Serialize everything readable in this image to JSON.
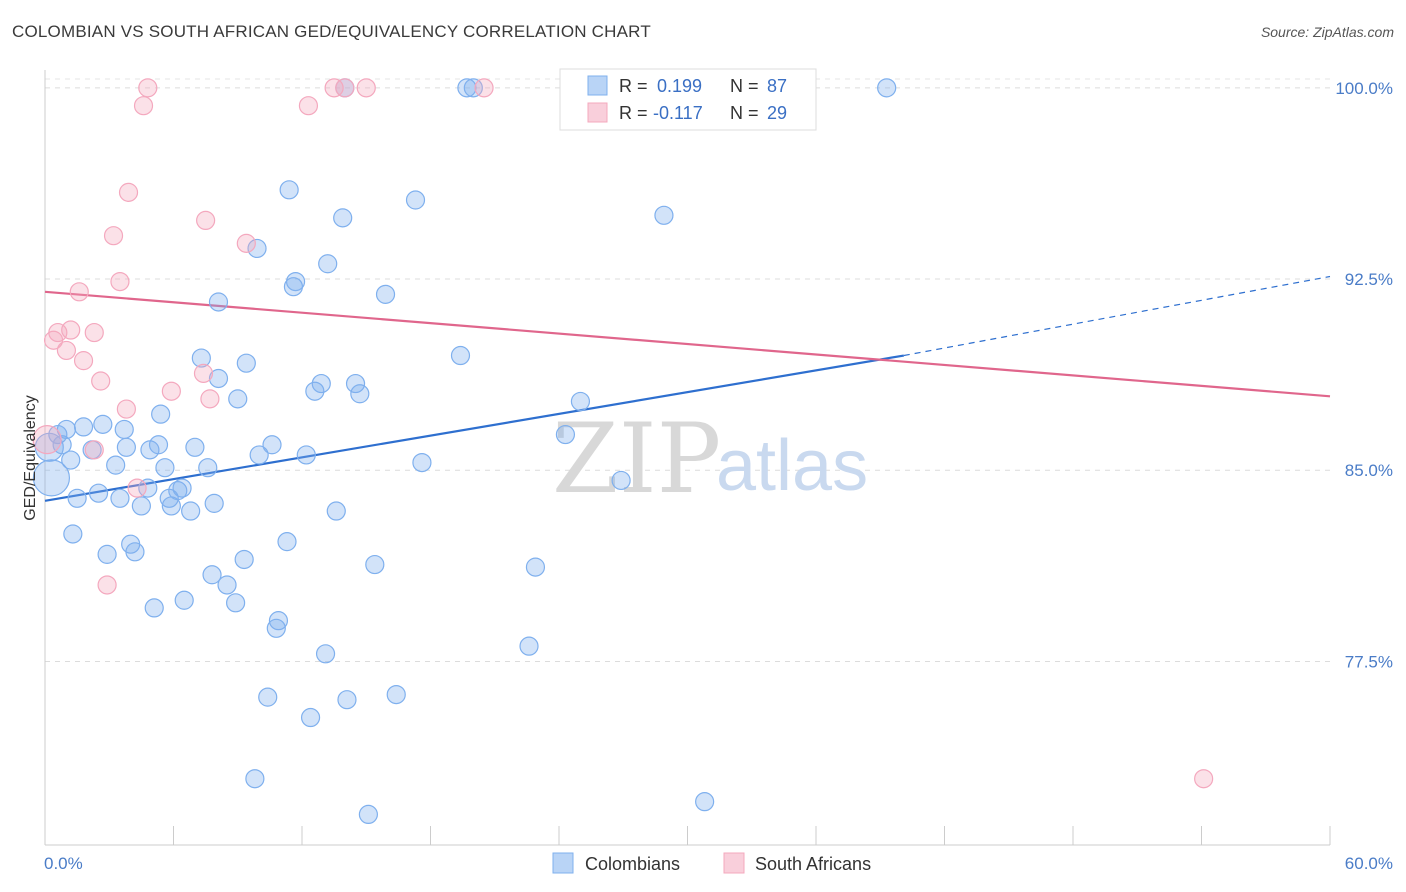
{
  "title": "COLOMBIAN VS SOUTH AFRICAN GED/EQUIVALENCY CORRELATION CHART",
  "source": "Source: ZipAtlas.com",
  "watermark": {
    "zip": "ZIP",
    "atlas": "atlas"
  },
  "legend_box": {
    "rows": [
      {
        "r_label": "R =",
        "r_value": "0.199",
        "n_label": "N =",
        "n_value": "87",
        "color": "#7fb0ee"
      },
      {
        "r_label": "R =",
        "r_value": "-0.117",
        "n_label": "N =",
        "n_value": "29",
        "color": "#f4a8be"
      }
    ]
  },
  "bottom_legend": [
    {
      "label": "Colombians",
      "color": "#7fb0ee"
    },
    {
      "label": "South Africans",
      "color": "#f4a8be"
    }
  ],
  "chart_data": {
    "type": "scatter",
    "title": "COLOMBIAN VS SOUTH AFRICAN GED/EQUIVALENCY CORRELATION CHART",
    "xlabel": "",
    "ylabel": "GED/Equivalency",
    "xlim": [
      0,
      60
    ],
    "ylim": [
      70.3,
      100.7
    ],
    "x_tick_labels": [
      "0.0%",
      "60.0%"
    ],
    "y_ticks": [
      77.5,
      85.0,
      92.5,
      100.0
    ],
    "y_tick_labels": [
      "77.5%",
      "85.0%",
      "92.5%",
      "100.0%"
    ],
    "grid": true,
    "series": [
      {
        "name": "Colombians",
        "color": "#7fb0ee",
        "line_color": "#2e6fcf",
        "trend": {
          "x0": 0,
          "y0": 83.8,
          "x1": 40.1,
          "y1": 89.5,
          "dash_to_x": 60,
          "dash_to_y": 92.6
        },
        "points": [
          [
            0.2,
            85.9,
            14
          ],
          [
            0.3,
            84.7,
            18
          ],
          [
            0.6,
            86.4,
            9
          ],
          [
            0.8,
            86.0,
            9
          ],
          [
            1.0,
            86.6,
            9
          ],
          [
            1.2,
            85.4,
            9
          ],
          [
            1.5,
            83.9,
            9
          ],
          [
            1.3,
            82.5,
            9
          ],
          [
            1.8,
            86.7,
            9
          ],
          [
            2.2,
            85.8,
            9
          ],
          [
            2.5,
            84.1,
            9
          ],
          [
            2.7,
            86.8,
            9
          ],
          [
            2.9,
            81.7,
            9
          ],
          [
            3.3,
            85.2,
            9
          ],
          [
            3.5,
            83.9,
            9
          ],
          [
            3.7,
            86.6,
            9
          ],
          [
            3.8,
            85.9,
            9
          ],
          [
            4.0,
            82.1,
            9
          ],
          [
            4.2,
            81.8,
            9
          ],
          [
            4.5,
            83.6,
            9
          ],
          [
            4.8,
            84.3,
            9
          ],
          [
            4.9,
            85.8,
            9
          ],
          [
            5.1,
            79.6,
            9
          ],
          [
            5.3,
            86.0,
            9
          ],
          [
            5.4,
            87.2,
            9
          ],
          [
            5.6,
            85.1,
            9
          ],
          [
            5.8,
            83.9,
            9
          ],
          [
            5.9,
            83.6,
            9
          ],
          [
            6.2,
            84.2,
            9
          ],
          [
            6.4,
            84.3,
            9
          ],
          [
            6.5,
            79.9,
            9
          ],
          [
            6.8,
            83.4,
            9
          ],
          [
            7.0,
            85.9,
            9
          ],
          [
            7.3,
            89.4,
            9
          ],
          [
            7.6,
            85.1,
            9
          ],
          [
            7.8,
            80.9,
            9
          ],
          [
            7.9,
            83.7,
            9
          ],
          [
            8.1,
            88.6,
            9
          ],
          [
            8.1,
            91.6,
            9
          ],
          [
            8.5,
            80.5,
            9
          ],
          [
            8.9,
            79.8,
            9
          ],
          [
            9.0,
            87.8,
            9
          ],
          [
            9.3,
            81.5,
            9
          ],
          [
            9.4,
            89.2,
            9
          ],
          [
            9.9,
            93.7,
            9
          ],
          [
            10.0,
            85.6,
            9
          ],
          [
            10.4,
            76.1,
            9
          ],
          [
            10.6,
            86.0,
            9
          ],
          [
            10.9,
            79.1,
            9
          ],
          [
            10.8,
            78.8,
            9
          ],
          [
            11.3,
            82.2,
            9
          ],
          [
            11.4,
            96.0,
            9
          ],
          [
            11.6,
            92.2,
            9
          ],
          [
            11.7,
            92.4,
            9
          ],
          [
            12.2,
            85.6,
            9
          ],
          [
            12.4,
            75.3,
            9
          ],
          [
            12.6,
            88.1,
            9
          ],
          [
            12.9,
            88.4,
            9
          ],
          [
            13.1,
            77.8,
            9
          ],
          [
            13.2,
            93.1,
            9
          ],
          [
            13.6,
            83.4,
            9
          ],
          [
            13.9,
            94.9,
            9
          ],
          [
            14.0,
            100.0,
            9
          ],
          [
            14.1,
            76.0,
            9
          ],
          [
            14.5,
            88.4,
            9
          ],
          [
            14.7,
            88.0,
            9
          ],
          [
            15.4,
            81.3,
            9
          ],
          [
            15.9,
            91.9,
            9
          ],
          [
            16.4,
            76.2,
            9
          ],
          [
            17.3,
            95.6,
            9
          ],
          [
            17.6,
            85.3,
            9
          ],
          [
            19.4,
            89.5,
            9
          ],
          [
            19.7,
            100.0,
            9
          ],
          [
            20.0,
            100.0,
            9
          ],
          [
            22.6,
            78.1,
            9
          ],
          [
            22.9,
            81.2,
            9
          ],
          [
            24.3,
            86.4,
            9
          ],
          [
            25.0,
            87.7,
            9
          ],
          [
            26.9,
            84.6,
            9
          ],
          [
            28.9,
            95.0,
            9
          ],
          [
            30.8,
            72.0,
            9
          ],
          [
            32.6,
            100.0,
            9
          ],
          [
            39.3,
            100.0,
            9
          ],
          [
            9.8,
            72.9,
            9
          ],
          [
            15.1,
            71.5,
            9
          ]
        ]
      },
      {
        "name": "South Africans",
        "color": "#f4a8be",
        "line_color": "#e0668c",
        "trend": {
          "x0": 0,
          "y0": 92.0,
          "x1": 60,
          "y1": 87.9
        },
        "points": [
          [
            0.1,
            86.2,
            14
          ],
          [
            0.4,
            90.1,
            9
          ],
          [
            0.6,
            90.4,
            9
          ],
          [
            1.0,
            89.7,
            9
          ],
          [
            1.2,
            90.5,
            9
          ],
          [
            1.6,
            92.0,
            9
          ],
          [
            1.8,
            89.3,
            9
          ],
          [
            2.3,
            85.8,
            9
          ],
          [
            2.3,
            90.4,
            9
          ],
          [
            2.6,
            88.5,
            9
          ],
          [
            2.9,
            80.5,
            9
          ],
          [
            3.2,
            94.2,
            9
          ],
          [
            3.5,
            92.4,
            9
          ],
          [
            3.8,
            87.4,
            9
          ],
          [
            3.9,
            95.9,
            9
          ],
          [
            4.3,
            84.3,
            9
          ],
          [
            4.6,
            99.3,
            9
          ],
          [
            4.8,
            100.0,
            9
          ],
          [
            5.9,
            88.1,
            9
          ],
          [
            7.4,
            88.8,
            9
          ],
          [
            7.5,
            94.8,
            9
          ],
          [
            7.7,
            87.8,
            9
          ],
          [
            9.4,
            93.9,
            9
          ],
          [
            12.3,
            99.3,
            9
          ],
          [
            13.5,
            100.0,
            9
          ],
          [
            14.0,
            100.0,
            9
          ],
          [
            15.0,
            100.0,
            9
          ],
          [
            20.5,
            100.0,
            9
          ],
          [
            54.1,
            72.9,
            9
          ]
        ]
      }
    ]
  }
}
